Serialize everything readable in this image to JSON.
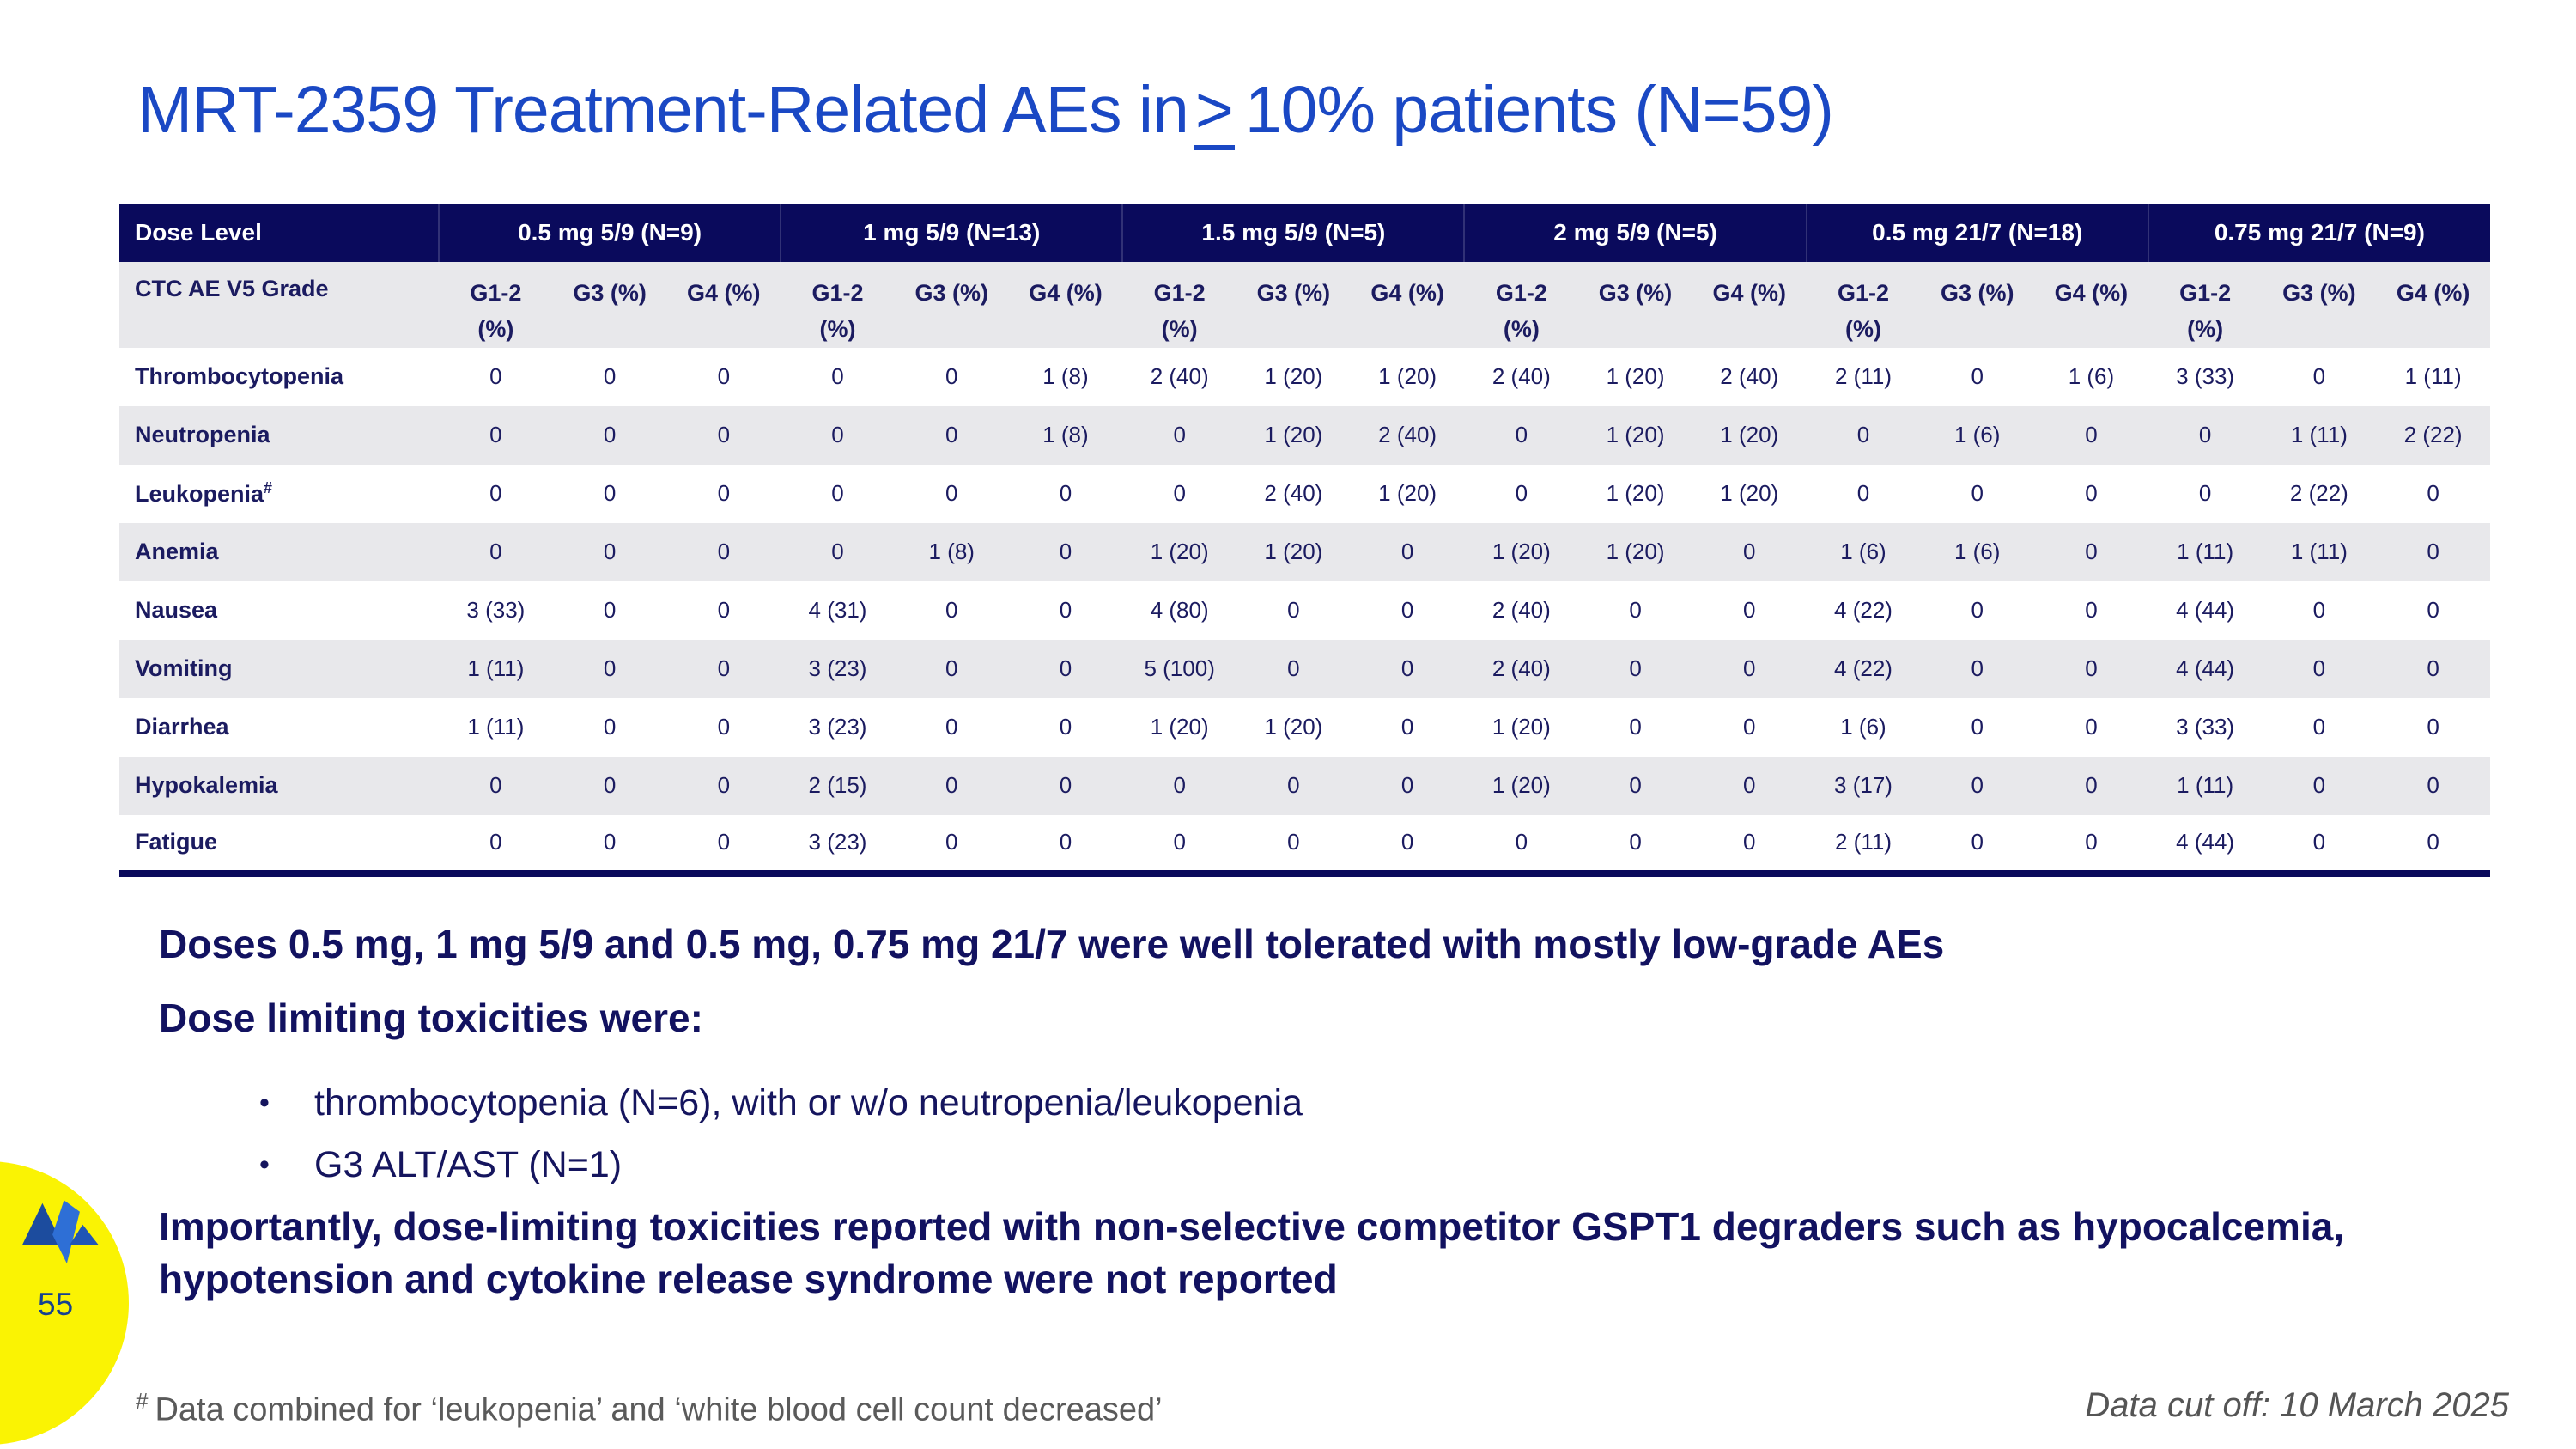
{
  "slide": {
    "title": {
      "prefix": "MRT-2359 Treatment-Related AEs in",
      "geq": ">",
      "suffix": "10% patients (N=59)"
    },
    "page_number": "55",
    "footnote": {
      "marker": "#",
      "text": "Data combined for ‘leukopenia’ and ‘white blood cell count decreased’"
    },
    "data_cutoff": "Data cut off: 10 March 2025"
  },
  "table": {
    "dose_header_label": "Dose Level",
    "dose_groups": [
      {
        "label": "0.5 mg 5/9 (N=9)"
      },
      {
        "label": "1 mg 5/9 (N=13)"
      },
      {
        "label": "1.5 mg 5/9 (N=5)"
      },
      {
        "label": "2 mg 5/9 (N=5)"
      },
      {
        "label": "0.5 mg 21/7 (N=18)"
      },
      {
        "label": "0.75 mg 21/7 (N=9)"
      }
    ],
    "grade_header_label": "CTC AE V5 Grade",
    "grade_cols": [
      "G1-2\n(%)",
      "G3 (%)",
      "G4 (%)"
    ],
    "rows": [
      {
        "label": "Thrombocytopenia",
        "sup": "",
        "cells": [
          "0",
          "0",
          "0",
          "0",
          "0",
          "1 (8)",
          "2 (40)",
          "1 (20)",
          "1 (20)",
          "2 (40)",
          "1 (20)",
          "2 (40)",
          "2 (11)",
          "0",
          "1 (6)",
          "3 (33)",
          "0",
          "1 (11)"
        ]
      },
      {
        "label": "Neutropenia",
        "sup": "",
        "cells": [
          "0",
          "0",
          "0",
          "0",
          "0",
          "1 (8)",
          "0",
          "1 (20)",
          "2 (40)",
          "0",
          "1 (20)",
          "1 (20)",
          "0",
          "1 (6)",
          "0",
          "0",
          "1 (11)",
          "2 (22)"
        ]
      },
      {
        "label": "Leukopenia",
        "sup": "#",
        "cells": [
          "0",
          "0",
          "0",
          "0",
          "0",
          "0",
          "0",
          "2 (40)",
          "1 (20)",
          "0",
          "1 (20)",
          "1 (20)",
          "0",
          "0",
          "0",
          "0",
          "2 (22)",
          "0"
        ]
      },
      {
        "label": "Anemia",
        "sup": "",
        "cells": [
          "0",
          "0",
          "0",
          "0",
          "1 (8)",
          "0",
          "1 (20)",
          "1 (20)",
          "0",
          "1 (20)",
          "1 (20)",
          "0",
          "1 (6)",
          "1 (6)",
          "0",
          "1 (11)",
          "1 (11)",
          "0"
        ]
      },
      {
        "label": "Nausea",
        "sup": "",
        "cells": [
          "3 (33)",
          "0",
          "0",
          "4 (31)",
          "0",
          "0",
          "4 (80)",
          "0",
          "0",
          "2 (40)",
          "0",
          "0",
          "4 (22)",
          "0",
          "0",
          "4 (44)",
          "0",
          "0"
        ]
      },
      {
        "label": "Vomiting",
        "sup": "",
        "cells": [
          "1 (11)",
          "0",
          "0",
          "3 (23)",
          "0",
          "0",
          "5 (100)",
          "0",
          "0",
          "2 (40)",
          "0",
          "0",
          "4 (22)",
          "0",
          "0",
          "4 (44)",
          "0",
          "0"
        ]
      },
      {
        "label": "Diarrhea",
        "sup": "",
        "cells": [
          "1 (11)",
          "0",
          "0",
          "3 (23)",
          "0",
          "0",
          "1 (20)",
          "1 (20)",
          "0",
          "1 (20)",
          "0",
          "0",
          "1 (6)",
          "0",
          "0",
          "3 (33)",
          "0",
          "0"
        ]
      },
      {
        "label": "Hypokalemia",
        "sup": "",
        "cells": [
          "0",
          "0",
          "0",
          "2 (15)",
          "0",
          "0",
          "0",
          "0",
          "0",
          "1 (20)",
          "0",
          "0",
          "3 (17)",
          "0",
          "0",
          "1 (11)",
          "0",
          "0"
        ]
      },
      {
        "label": "Fatigue",
        "sup": "",
        "cells": [
          "0",
          "0",
          "0",
          "3 (23)",
          "0",
          "0",
          "0",
          "0",
          "0",
          "0",
          "0",
          "0",
          "2 (11)",
          "0",
          "0",
          "4 (44)",
          "0",
          "0"
        ]
      }
    ]
  },
  "findings": {
    "statement1": "Doses 0.5 mg, 1 mg 5/9 and 0.5 mg, 0.75 mg 21/7 were well tolerated with mostly low-grade AEs",
    "statement2": "Dose limiting toxicities were:",
    "bullet_glyph": "•",
    "bullets": [
      "thrombocytopenia (N=6), with or w/o neutropenia/leukopenia",
      "G3 ALT/AST (N=1)"
    ],
    "emphasis": "Importantly, dose-limiting toxicities reported with non-selective competitor GSPT1 degraders such as hypocalcemia, hypotension and cytokine release syndrome were not reported"
  },
  "colors": {
    "title_blue": "#1A48C4",
    "header_navy": "#0A0A5C",
    "body_navy": "#1B1B60",
    "stripe_gray": "#E8E8EB",
    "footer_gray": "#5A5A5A",
    "badge_yellow": "#FAF303",
    "logo_blue_dark": "#1C4C9E",
    "logo_blue_mid": "#2E6FD6"
  }
}
